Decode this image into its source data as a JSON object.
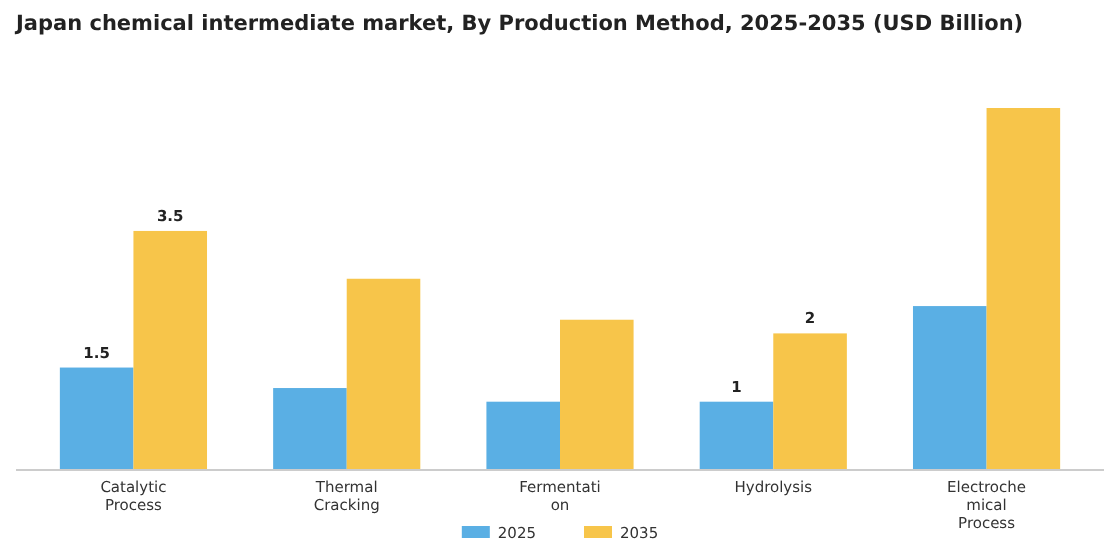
{
  "chart_data": {
    "type": "bar",
    "title": "Japan chemical intermediate market, By Production Method, 2025-2035 (USD Billion)",
    "categories": [
      "Catalytic\nProcess",
      "Thermal\nCracking",
      "Fermentati\non",
      "Hydrolysis",
      "Electroche\nmical\nProcess"
    ],
    "series": [
      {
        "name": "2025",
        "color": "#5aafe4",
        "values": [
          1.5,
          1.2,
          1.0,
          1,
          2.4
        ],
        "value_labels": [
          "1.5",
          null,
          null,
          "1",
          null
        ]
      },
      {
        "name": "2035",
        "color": "#f7c54a",
        "values": [
          3.5,
          2.8,
          2.2,
          2,
          5.3
        ],
        "value_labels": [
          "3.5",
          null,
          null,
          "2",
          null
        ]
      }
    ],
    "legend": "bottom"
  }
}
